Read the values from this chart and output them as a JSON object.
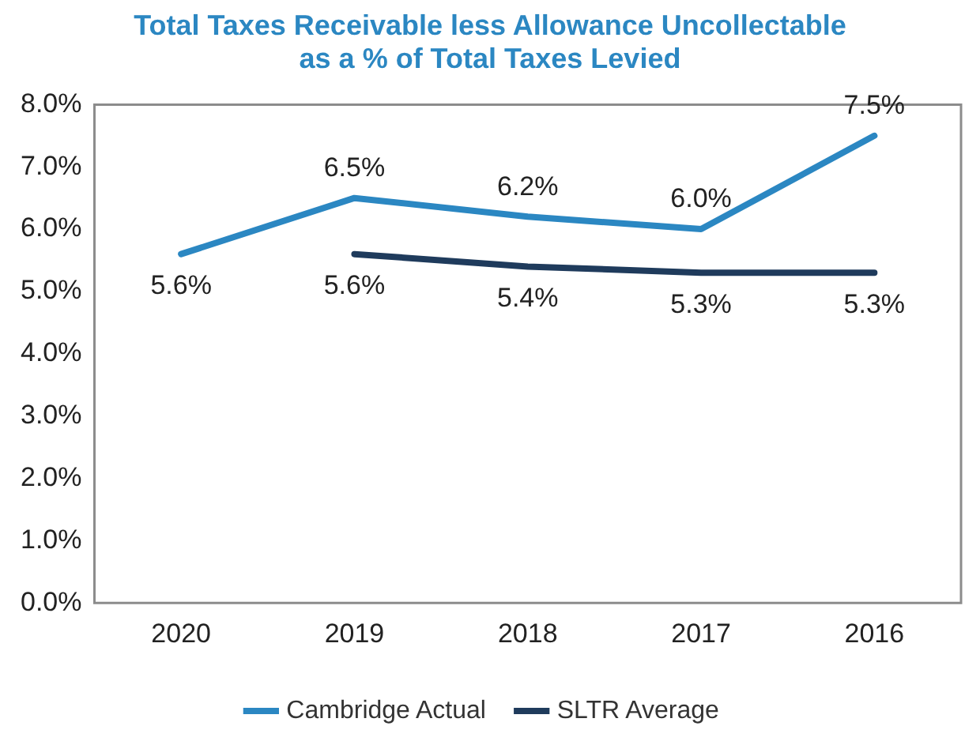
{
  "chart_data": {
    "type": "line",
    "title": "Total Taxes Receivable less Allowance Uncollectable as a % of Total Taxes Levied",
    "categories": [
      "2020",
      "2019",
      "2018",
      "2017",
      "2016"
    ],
    "series": [
      {
        "name": "Cambridge Actual",
        "color": "#2b87c2",
        "values": [
          5.6,
          6.5,
          6.2,
          6.0,
          7.5
        ],
        "value_labels": [
          "5.6%",
          "6.5%",
          "6.2%",
          "6.0%",
          "7.5%"
        ]
      },
      {
        "name": "SLTR Average",
        "color": "#1f3b5c",
        "values": [
          null,
          5.6,
          5.4,
          5.3,
          5.3
        ],
        "value_labels": [
          null,
          "5.6%",
          "5.4%",
          "5.3%",
          "5.3%"
        ]
      }
    ],
    "ylim": [
      0,
      8
    ],
    "yticks": [
      {
        "value": 0,
        "label": "0.0%"
      },
      {
        "value": 1,
        "label": "1.0%"
      },
      {
        "value": 2,
        "label": "2.0%"
      },
      {
        "value": 3,
        "label": "3.0%"
      },
      {
        "value": 4,
        "label": "4.0%"
      },
      {
        "value": 5,
        "label": "5.0%"
      },
      {
        "value": 6,
        "label": "6.0%"
      },
      {
        "value": 7,
        "label": "7.0%"
      },
      {
        "value": 8,
        "label": "8.0%"
      }
    ],
    "grid": false,
    "legend": "bottom",
    "marker": "none",
    "line_style": "solid"
  }
}
